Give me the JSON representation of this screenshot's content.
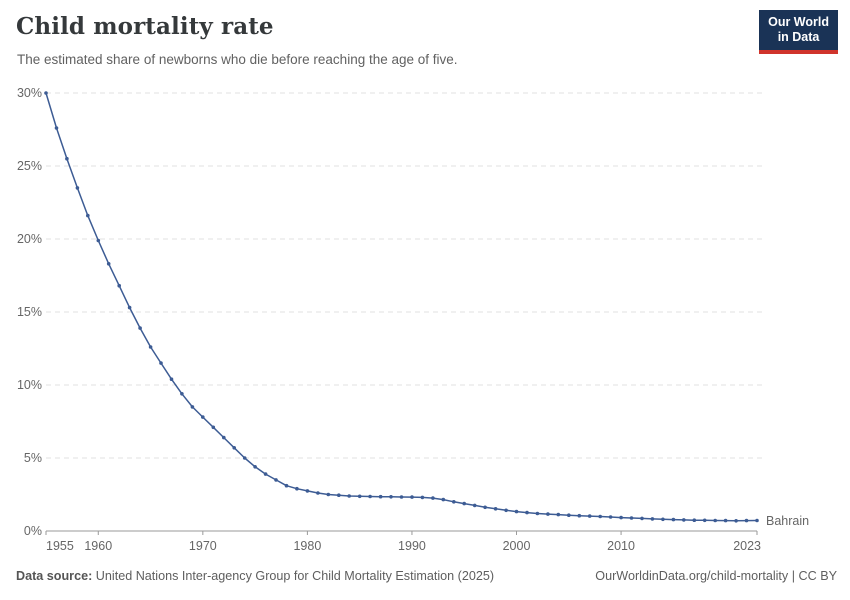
{
  "header": {
    "title": "Child mortality rate",
    "subtitle": "The estimated share of newborns who die before reaching the age of five.",
    "logo": {
      "line1": "Our World",
      "line2": "in Data",
      "bg_color": "#1a3356",
      "accent_color": "#d0342c"
    }
  },
  "chart_data": {
    "type": "line",
    "title": "Child mortality rate",
    "xlabel": "",
    "ylabel": "",
    "xlim": [
      1955,
      2023
    ],
    "ylim": [
      0,
      30
    ],
    "x_ticks": [
      1955,
      1960,
      1970,
      1980,
      1990,
      2000,
      2010,
      2023
    ],
    "y_ticks": [
      0,
      5,
      10,
      15,
      20,
      25,
      30
    ],
    "y_tick_suffix": "%",
    "grid": "dashed-horizontal",
    "legend": "end-of-line-label",
    "line_color": "#3d5c94",
    "grid_color": "#e0e0e0",
    "axis_color": "#9a9a9a",
    "series": [
      {
        "name": "Bahrain",
        "color": "#3d5c94",
        "x": [
          1955,
          1956,
          1957,
          1958,
          1959,
          1960,
          1961,
          1962,
          1963,
          1964,
          1965,
          1966,
          1967,
          1968,
          1969,
          1970,
          1971,
          1972,
          1973,
          1974,
          1975,
          1976,
          1977,
          1978,
          1979,
          1980,
          1981,
          1982,
          1983,
          1984,
          1985,
          1986,
          1987,
          1988,
          1989,
          1990,
          1991,
          1992,
          1993,
          1994,
          1995,
          1996,
          1997,
          1998,
          1999,
          2000,
          2001,
          2002,
          2003,
          2004,
          2005,
          2006,
          2007,
          2008,
          2009,
          2010,
          2011,
          2012,
          2013,
          2014,
          2015,
          2016,
          2017,
          2018,
          2019,
          2020,
          2021,
          2022,
          2023
        ],
        "values": [
          30.0,
          27.6,
          25.5,
          23.5,
          21.6,
          19.9,
          18.3,
          16.8,
          15.3,
          13.9,
          12.6,
          11.5,
          10.4,
          9.4,
          8.5,
          7.8,
          7.1,
          6.4,
          5.7,
          5.0,
          4.4,
          3.9,
          3.5,
          3.1,
          2.9,
          2.75,
          2.6,
          2.5,
          2.45,
          2.4,
          2.38,
          2.36,
          2.35,
          2.34,
          2.33,
          2.32,
          2.3,
          2.25,
          2.15,
          2.0,
          1.88,
          1.75,
          1.62,
          1.52,
          1.42,
          1.33,
          1.26,
          1.2,
          1.16,
          1.12,
          1.08,
          1.05,
          1.02,
          0.99,
          0.96,
          0.92,
          0.89,
          0.86,
          0.83,
          0.8,
          0.78,
          0.76,
          0.74,
          0.73,
          0.72,
          0.71,
          0.7,
          0.71,
          0.72
        ]
      }
    ]
  },
  "footer": {
    "source_label": "Data source:",
    "source_text": " United Nations Inter-agency Group for Child Mortality Estimation (2025)",
    "link_text": "OurWorldinData.org/child-mortality | CC BY"
  }
}
